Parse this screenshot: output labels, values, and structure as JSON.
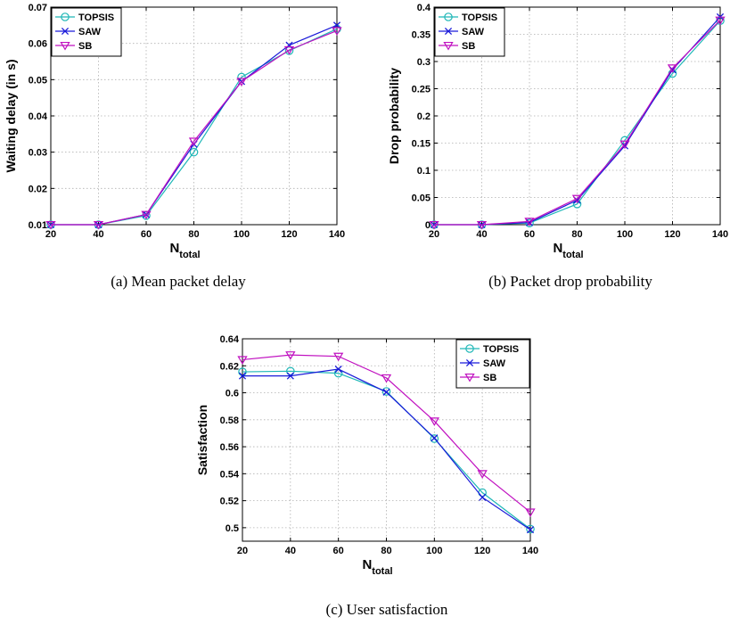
{
  "colors": {
    "TOPSIS": "#1fb7b7",
    "SAW": "#1a1ad9",
    "SB": "#c010c0"
  },
  "chart_data": [
    {
      "id": "a",
      "type": "line",
      "caption": "(a) Mean packet delay",
      "ylabel": "Waiting delay (in s)",
      "xlabel_main": "N",
      "xlabel_sub": "total",
      "xlim": [
        20,
        140
      ],
      "ylim": [
        0.01,
        0.07
      ],
      "xticks": [
        20,
        40,
        60,
        80,
        100,
        120,
        140
      ],
      "xtick_labels": [
        "20",
        "40",
        "60",
        "80",
        "100",
        "120",
        "140"
      ],
      "yticks": [
        0.01,
        0.02,
        0.03,
        0.04,
        0.05,
        0.06,
        0.07
      ],
      "ytick_labels": [
        "0.01",
        "0.02",
        "0.03",
        "0.04",
        "0.05",
        "0.06",
        "0.07"
      ],
      "grid": true,
      "legend_position": "top-left",
      "x": [
        20,
        40,
        60,
        80,
        100,
        120,
        140
      ],
      "series": [
        {
          "name": "TOPSIS",
          "values": [
            0.01,
            0.01,
            0.0125,
            0.03,
            0.0507,
            0.058,
            0.064
          ]
        },
        {
          "name": "SAW",
          "values": [
            0.01,
            0.01,
            0.0128,
            0.0322,
            0.0495,
            0.0595,
            0.065
          ]
        },
        {
          "name": "SB",
          "values": [
            0.01,
            0.01,
            0.0128,
            0.033,
            0.0495,
            0.0582,
            0.0635
          ]
        }
      ]
    },
    {
      "id": "b",
      "type": "line",
      "caption": "(b) Packet drop probability",
      "ylabel": "Drop probability",
      "xlabel_main": "N",
      "xlabel_sub": "total",
      "xlim": [
        20,
        140
      ],
      "ylim": [
        0,
        0.4
      ],
      "xticks": [
        20,
        40,
        60,
        80,
        100,
        120,
        140
      ],
      "xtick_labels": [
        "20",
        "40",
        "60",
        "80",
        "100",
        "120",
        "140"
      ],
      "yticks": [
        0,
        0.05,
        0.1,
        0.15,
        0.2,
        0.25,
        0.3,
        0.35,
        0.4
      ],
      "ytick_labels": [
        "0",
        "0.05",
        "0.1",
        "0.15",
        "0.2",
        "0.25",
        "0.3",
        "0.35",
        "0.4"
      ],
      "grid": true,
      "legend_position": "top-left",
      "x": [
        20,
        40,
        60,
        80,
        100,
        120,
        140
      ],
      "series": [
        {
          "name": "TOPSIS",
          "values": [
            0.0,
            0.0,
            0.003,
            0.038,
            0.155,
            0.278,
            0.375
          ]
        },
        {
          "name": "SAW",
          "values": [
            0.0,
            0.0,
            0.004,
            0.045,
            0.145,
            0.285,
            0.382
          ]
        },
        {
          "name": "SB",
          "values": [
            0.0,
            0.0,
            0.006,
            0.048,
            0.148,
            0.288,
            0.376
          ]
        }
      ]
    },
    {
      "id": "c",
      "type": "line",
      "caption": "(c) User satisfaction",
      "ylabel": "Satisfaction",
      "xlabel_main": "N",
      "xlabel_sub": "total",
      "xlim": [
        20,
        140
      ],
      "ylim": [
        0.49,
        0.64
      ],
      "xticks": [
        20,
        40,
        60,
        80,
        100,
        120,
        140
      ],
      "xtick_labels": [
        "20",
        "40",
        "60",
        "80",
        "100",
        "120",
        "140"
      ],
      "yticks": [
        0.5,
        0.52,
        0.54,
        0.56,
        0.58,
        0.6,
        0.62,
        0.64
      ],
      "ytick_labels": [
        "0.5",
        "0.52",
        "0.54",
        "0.56",
        "0.58",
        "0.6",
        "0.62",
        "0.64"
      ],
      "grid": true,
      "legend_position": "top-right",
      "x": [
        20,
        40,
        60,
        80,
        100,
        120,
        140
      ],
      "series": [
        {
          "name": "TOPSIS",
          "values": [
            0.6155,
            0.616,
            0.6145,
            0.601,
            0.566,
            0.526,
            0.499
          ]
        },
        {
          "name": "SAW",
          "values": [
            0.6125,
            0.6125,
            0.6175,
            0.6005,
            0.5665,
            0.5225,
            0.4985
          ]
        },
        {
          "name": "SB",
          "values": [
            0.6245,
            0.628,
            0.627,
            0.611,
            0.579,
            0.54,
            0.5115
          ]
        }
      ]
    }
  ]
}
